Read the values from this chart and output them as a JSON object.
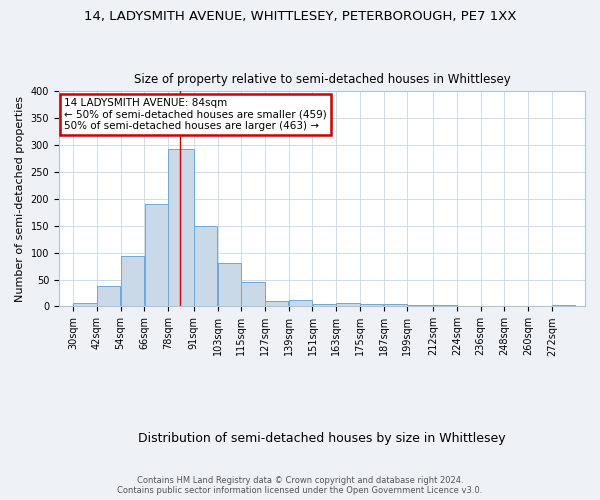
{
  "title1": "14, LADYSMITH AVENUE, WHITTLESEY, PETERBOROUGH, PE7 1XX",
  "title2": "Size of property relative to semi-detached houses in Whittlesey",
  "xlabel": "Distribution of semi-detached houses by size in Whittlesey",
  "ylabel": "Number of semi-detached properties",
  "footer": "Contains HM Land Registry data © Crown copyright and database right 2024.\nContains public sector information licensed under the Open Government Licence v3.0.",
  "bins": [
    30,
    42,
    54,
    66,
    78,
    91,
    103,
    115,
    127,
    139,
    151,
    163,
    175,
    187,
    199,
    212,
    224,
    236,
    248,
    260,
    272
  ],
  "counts": [
    6,
    38,
    93,
    190,
    293,
    150,
    80,
    45,
    10,
    12,
    5,
    6,
    5,
    4,
    3,
    2,
    1,
    1,
    1,
    1,
    3
  ],
  "bar_color": "#c9d9e8",
  "bar_edge_color": "#6fa8d6",
  "property_size": 84,
  "vline_color": "#cc0000",
  "annotation_line1": "14 LADYSMITH AVENUE: 84sqm",
  "annotation_line2": "← 50% of semi-detached houses are smaller (459)",
  "annotation_line3": "50% of semi-detached houses are larger (463) →",
  "annotation_box_color": "#cc0000",
  "ylim": [
    0,
    400
  ],
  "background_color": "#eef2f7",
  "plot_bg_color": "#ffffff",
  "grid_color": "#c8d8e8",
  "title1_fontsize": 9.5,
  "title2_fontsize": 8.5,
  "xlabel_fontsize": 9,
  "ylabel_fontsize": 8,
  "tick_fontsize": 7,
  "footer_fontsize": 6,
  "ann_fontsize": 7.5
}
